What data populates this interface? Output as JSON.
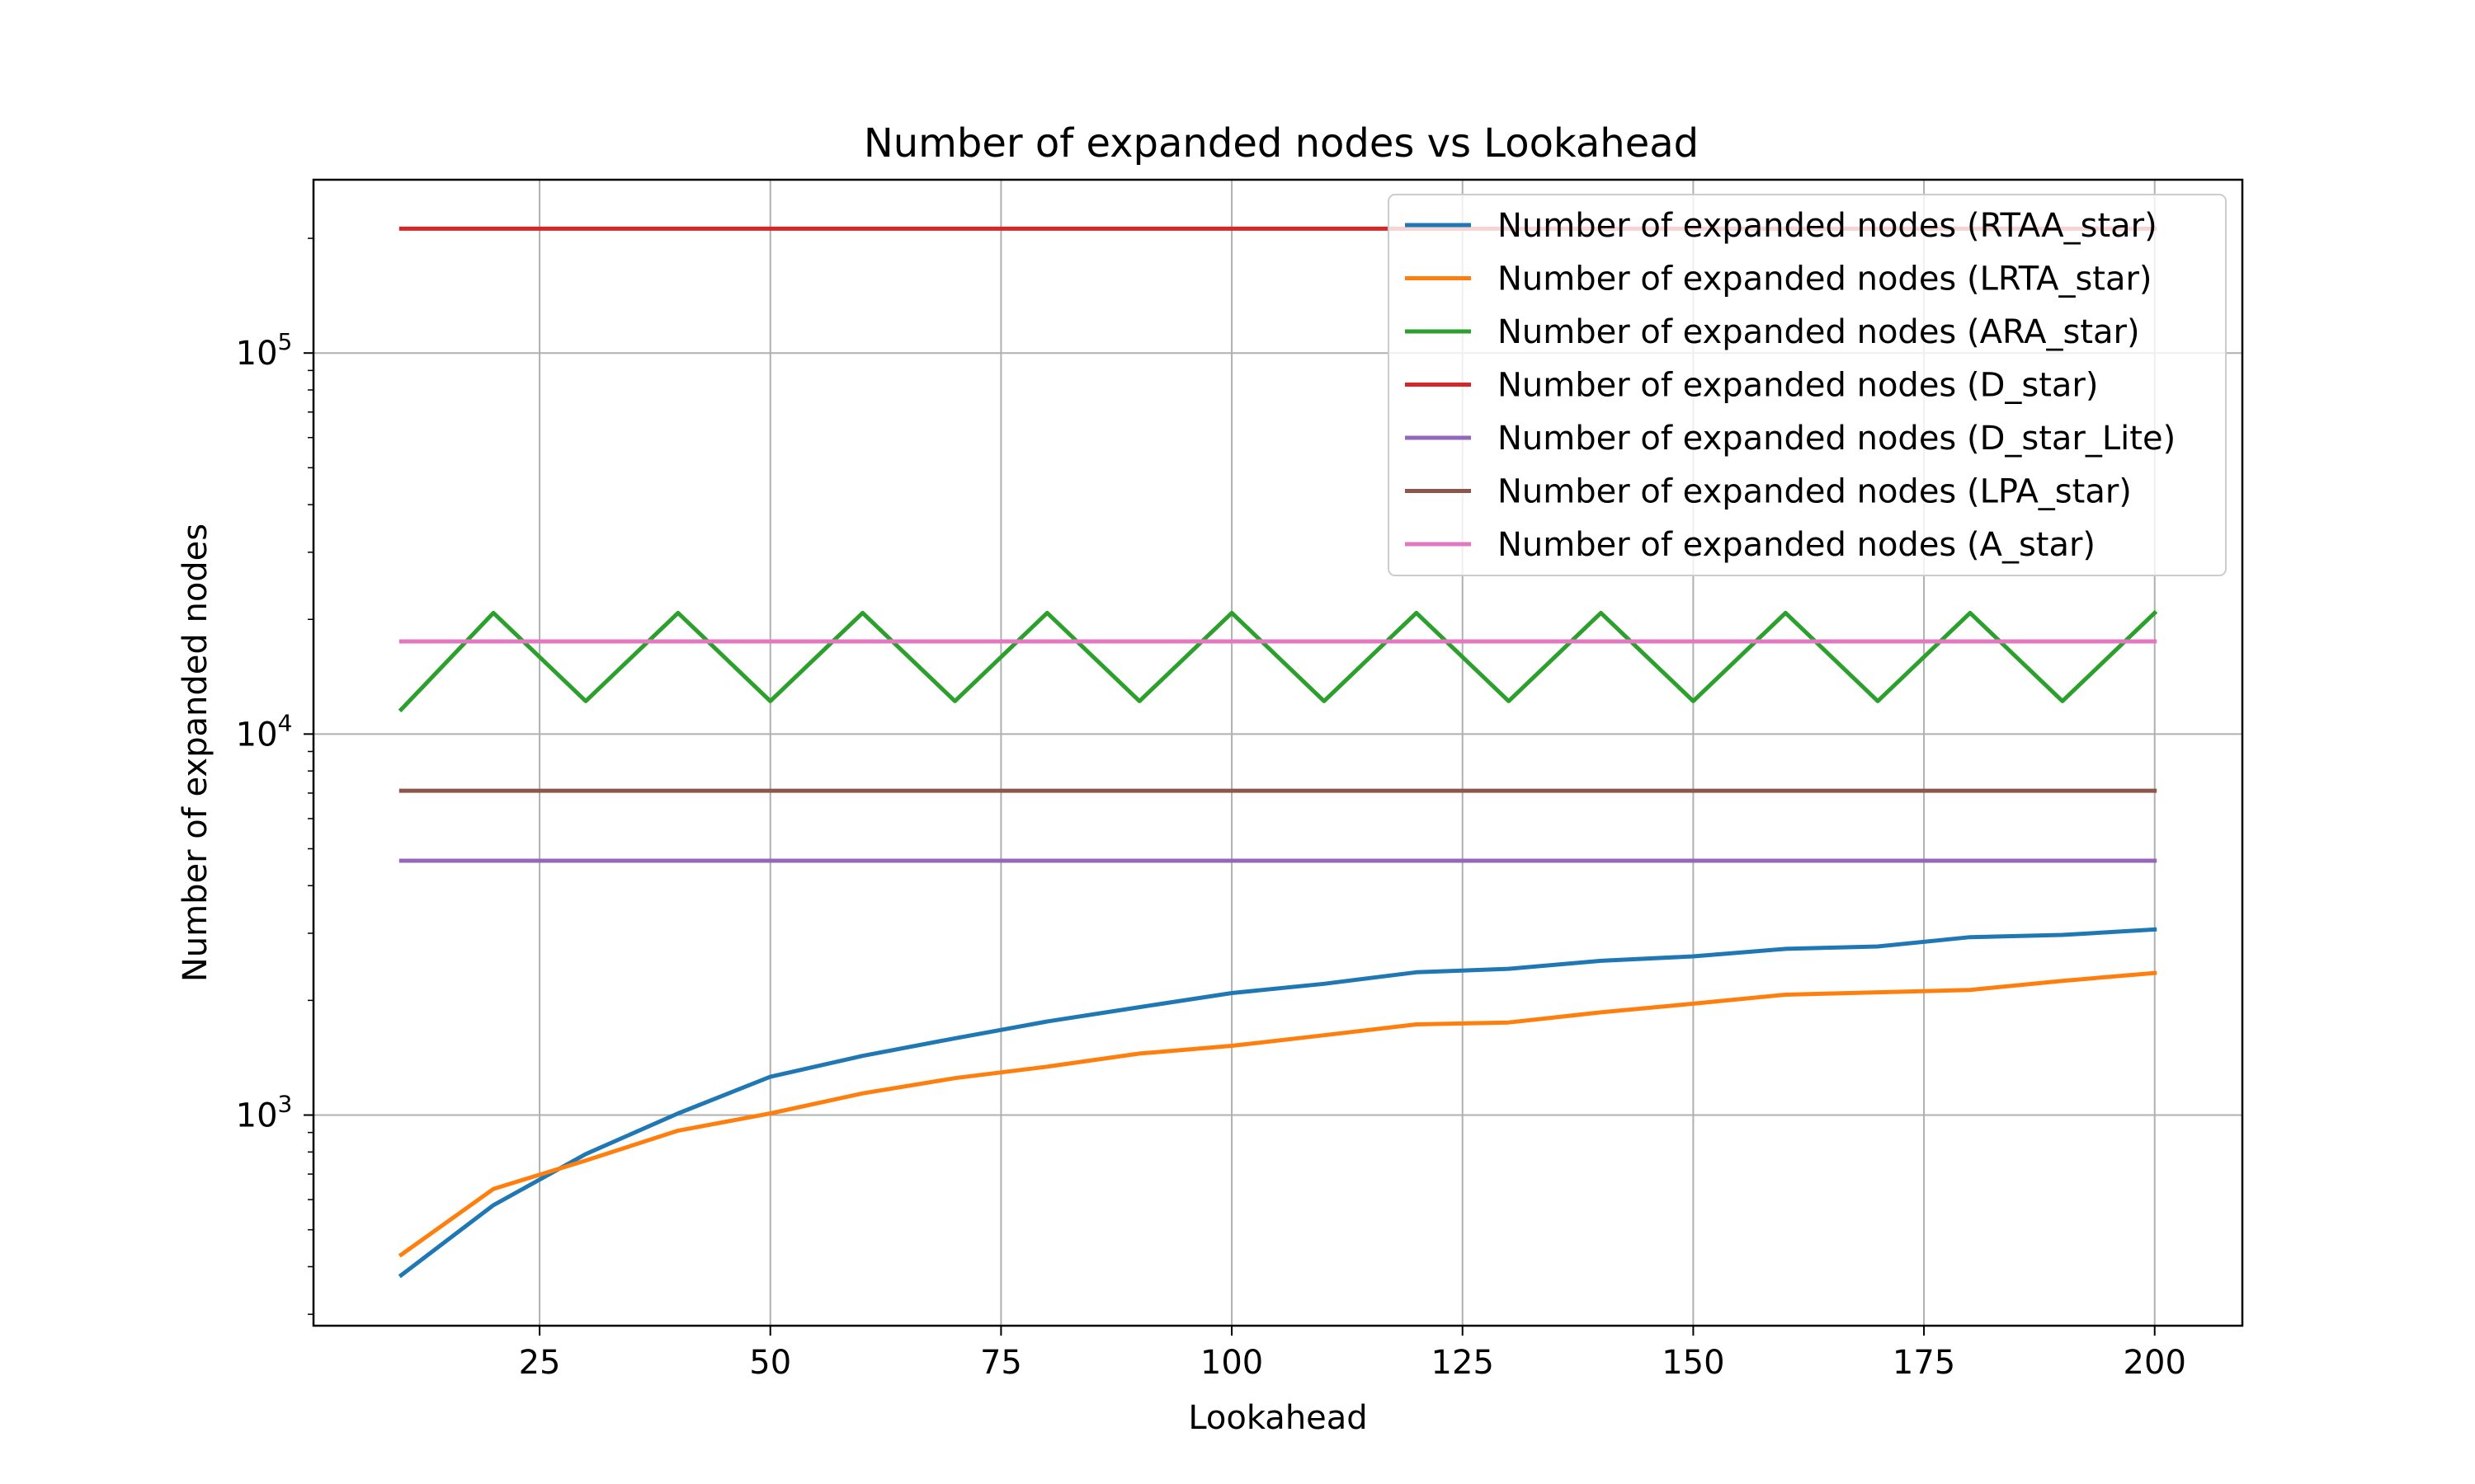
{
  "chart_data": {
    "type": "line",
    "title": "Number of expanded nodes vs Lookahead",
    "xlabel": "Lookahead",
    "ylabel": "Number of expanded nodes",
    "yscale": "log",
    "xlim": [
      0.5,
      209.5
    ],
    "ylim": [
      280,
      285000
    ],
    "xticks": [
      25,
      50,
      75,
      100,
      125,
      150,
      175,
      200
    ],
    "yticks": [
      {
        "value": 1000,
        "base": "10",
        "exp": "3"
      },
      {
        "value": 10000,
        "base": "10",
        "exp": "4"
      },
      {
        "value": 100000,
        "base": "10",
        "exp": "5"
      }
    ],
    "grid": true,
    "legend_position": "upper right",
    "x": [
      10,
      20,
      30,
      40,
      50,
      60,
      70,
      80,
      90,
      100,
      110,
      120,
      130,
      140,
      150,
      160,
      170,
      180,
      190,
      200
    ],
    "series": [
      {
        "name": "Number of expanded nodes (RTAA_star)",
        "color": "#1f77b4",
        "values": [
          380,
          580,
          790,
          1010,
          1260,
          1430,
          1590,
          1760,
          1920,
          2090,
          2210,
          2370,
          2420,
          2540,
          2610,
          2730,
          2770,
          2930,
          2970,
          3070
        ]
      },
      {
        "name": "Number of expanded nodes (LRTA_star)",
        "color": "#ff7f0e",
        "values": [
          430,
          640,
          760,
          910,
          1010,
          1140,
          1250,
          1340,
          1450,
          1520,
          1620,
          1730,
          1750,
          1860,
          1960,
          2070,
          2100,
          2130,
          2250,
          2360
        ]
      },
      {
        "name": "Number of expanded nodes (ARA_star)",
        "color": "#2ca02c",
        "values": [
          11600,
          20800,
          12200,
          20800,
          12200,
          20800,
          12200,
          20800,
          12200,
          20800,
          12200,
          20800,
          12200,
          20800,
          12200,
          20800,
          12200,
          20800,
          12200,
          20800
        ]
      },
      {
        "name": "Number of expanded nodes (D_star)",
        "color": "#d62728",
        "values": [
          212000,
          212000,
          212000,
          212000,
          212000,
          212000,
          212000,
          212000,
          212000,
          212000,
          212000,
          212000,
          212000,
          212000,
          212000,
          212000,
          212000,
          212000,
          212000,
          212000
        ]
      },
      {
        "name": "Number of expanded nodes (D_star_Lite)",
        "color": "#9467bd",
        "values": [
          4650,
          4650,
          4650,
          4650,
          4650,
          4650,
          4650,
          4650,
          4650,
          4650,
          4650,
          4650,
          4650,
          4650,
          4650,
          4650,
          4650,
          4650,
          4650,
          4650
        ]
      },
      {
        "name": "Number of expanded nodes (LPA_star)",
        "color": "#8c564b",
        "values": [
          7100,
          7100,
          7100,
          7100,
          7100,
          7100,
          7100,
          7100,
          7100,
          7100,
          7100,
          7100,
          7100,
          7100,
          7100,
          7100,
          7100,
          7100,
          7100,
          7100
        ]
      },
      {
        "name": "Number of expanded nodes (A_star)",
        "color": "#e377c2",
        "values": [
          17500,
          17500,
          17500,
          17500,
          17500,
          17500,
          17500,
          17500,
          17500,
          17500,
          17500,
          17500,
          17500,
          17500,
          17500,
          17500,
          17500,
          17500,
          17500,
          17500
        ]
      }
    ]
  }
}
